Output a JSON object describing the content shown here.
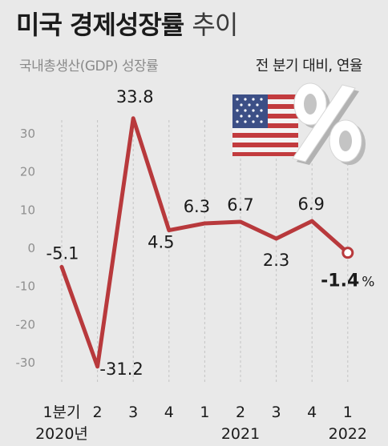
{
  "title": "미국 경제성장률",
  "title_suffix": "추이",
  "chart_data": {
    "type": "line",
    "ylabel": "국내총생산(GDP) 성장률",
    "unit_note": "전 분기 대비, 연율",
    "x_tick_labels": [
      "1분기",
      "2",
      "3",
      "4",
      "1",
      "2",
      "3",
      "4",
      "1"
    ],
    "x_year_labels": [
      {
        "index": 0,
        "label": "2020년"
      },
      {
        "index": 5,
        "label": "2021"
      },
      {
        "index": 8,
        "label": "2022"
      }
    ],
    "series": [
      {
        "values": [
          -5.1,
          -31.2,
          33.8,
          4.5,
          6.3,
          6.7,
          2.3,
          6.9,
          -1.4
        ],
        "data_labels": [
          "-5.1",
          "-31.2",
          "33.8",
          "4.5",
          "6.3",
          "6.7",
          "2.3",
          "6.9",
          "-1.4"
        ],
        "color": "#b8393c"
      }
    ],
    "highlight_last_label": "-1.4",
    "highlight_last_unit": "%",
    "ylim": [
      -34,
      36
    ],
    "yticks": [
      30,
      20,
      10,
      0,
      -10,
      -20,
      -30
    ],
    "grid": "vertical dotted",
    "line_color": "#b8393c"
  },
  "decor": {
    "flag_icon": "us-flag-icon",
    "percent_icon": "percent-sign-icon"
  }
}
